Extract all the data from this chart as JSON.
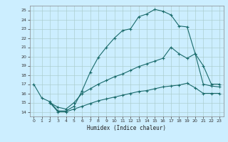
{
  "title": "",
  "xlabel": "Humidex (Indice chaleur)",
  "bg_color": "#cceeff",
  "grid_color": "#aacccc",
  "line_color": "#1a6b6b",
  "xlim": [
    -0.5,
    23.5
  ],
  "ylim": [
    13.5,
    25.5
  ],
  "xticks": [
    0,
    1,
    2,
    3,
    4,
    5,
    6,
    7,
    8,
    9,
    10,
    11,
    12,
    13,
    14,
    15,
    16,
    17,
    18,
    19,
    20,
    21,
    22,
    23
  ],
  "yticks": [
    14,
    15,
    16,
    17,
    18,
    19,
    20,
    21,
    22,
    23,
    24,
    25
  ],
  "line1_x": [
    0,
    1,
    2,
    3,
    4,
    5,
    6,
    7,
    8,
    9,
    10,
    11,
    12,
    13,
    14,
    15,
    16,
    17,
    18,
    19,
    20,
    21,
    22,
    23
  ],
  "line1_y": [
    17.0,
    15.5,
    15.1,
    14.1,
    14.1,
    14.6,
    16.3,
    18.3,
    19.9,
    21.0,
    22.0,
    22.8,
    23.0,
    24.3,
    24.6,
    25.1,
    24.9,
    24.5,
    23.3,
    23.2,
    20.3,
    19.0,
    17.0,
    17.0
  ],
  "line2_x": [
    2,
    3,
    4,
    5,
    6,
    7,
    8,
    9,
    10,
    11,
    12,
    13,
    14,
    15,
    16,
    17,
    18,
    19,
    20,
    21,
    22,
    23
  ],
  "line2_y": [
    15.0,
    14.5,
    14.3,
    15.0,
    16.0,
    16.5,
    17.0,
    17.4,
    17.8,
    18.1,
    18.5,
    18.9,
    19.2,
    19.5,
    19.8,
    21.0,
    20.3,
    19.8,
    20.3,
    17.0,
    16.8,
    16.7
  ],
  "line3_x": [
    2,
    3,
    4,
    5,
    6,
    7,
    8,
    9,
    10,
    11,
    12,
    13,
    14,
    15,
    16,
    17,
    18,
    19,
    20,
    21,
    22,
    23
  ],
  "line3_y": [
    15.0,
    14.0,
    14.0,
    14.3,
    14.6,
    14.9,
    15.2,
    15.4,
    15.6,
    15.8,
    16.0,
    16.2,
    16.3,
    16.5,
    16.7,
    16.8,
    16.9,
    17.1,
    16.6,
    16.0,
    16.0,
    16.0
  ]
}
